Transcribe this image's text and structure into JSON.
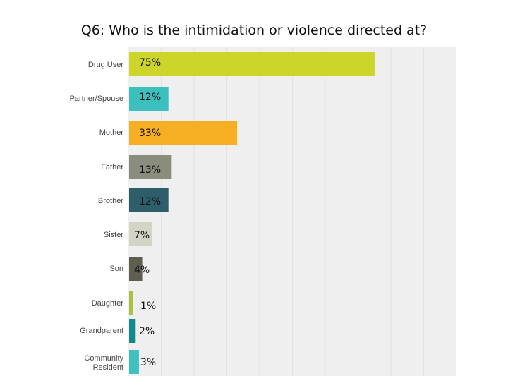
{
  "chart_data": {
    "type": "bar",
    "orientation": "horizontal",
    "title": "Q6: Who is the intimidation or violence directed at?",
    "categories": [
      "Drug User",
      "Partner/Spouse",
      "Mother",
      "Father",
      "Brother",
      "Sister",
      "Son",
      "Daughter",
      "Grandparent",
      "Community Resident"
    ],
    "values": [
      75,
      12,
      33,
      13,
      12,
      7,
      4,
      1,
      2,
      3
    ],
    "data_labels": [
      "75%",
      "12%",
      "33%",
      "13%",
      "12%",
      "7%",
      "4%",
      "1%",
      "2%",
      "3%"
    ],
    "unit": "%",
    "xlim": [
      0,
      100
    ],
    "grid": true,
    "colors": [
      "#cdd42a",
      "#3bbfbf",
      "#f6ae22",
      "#8a8c7c",
      "#2f5e6b",
      "#d3d3c6",
      "#5f5e50",
      "#a9c23f",
      "#12898a",
      "#3fc1c4"
    ]
  }
}
